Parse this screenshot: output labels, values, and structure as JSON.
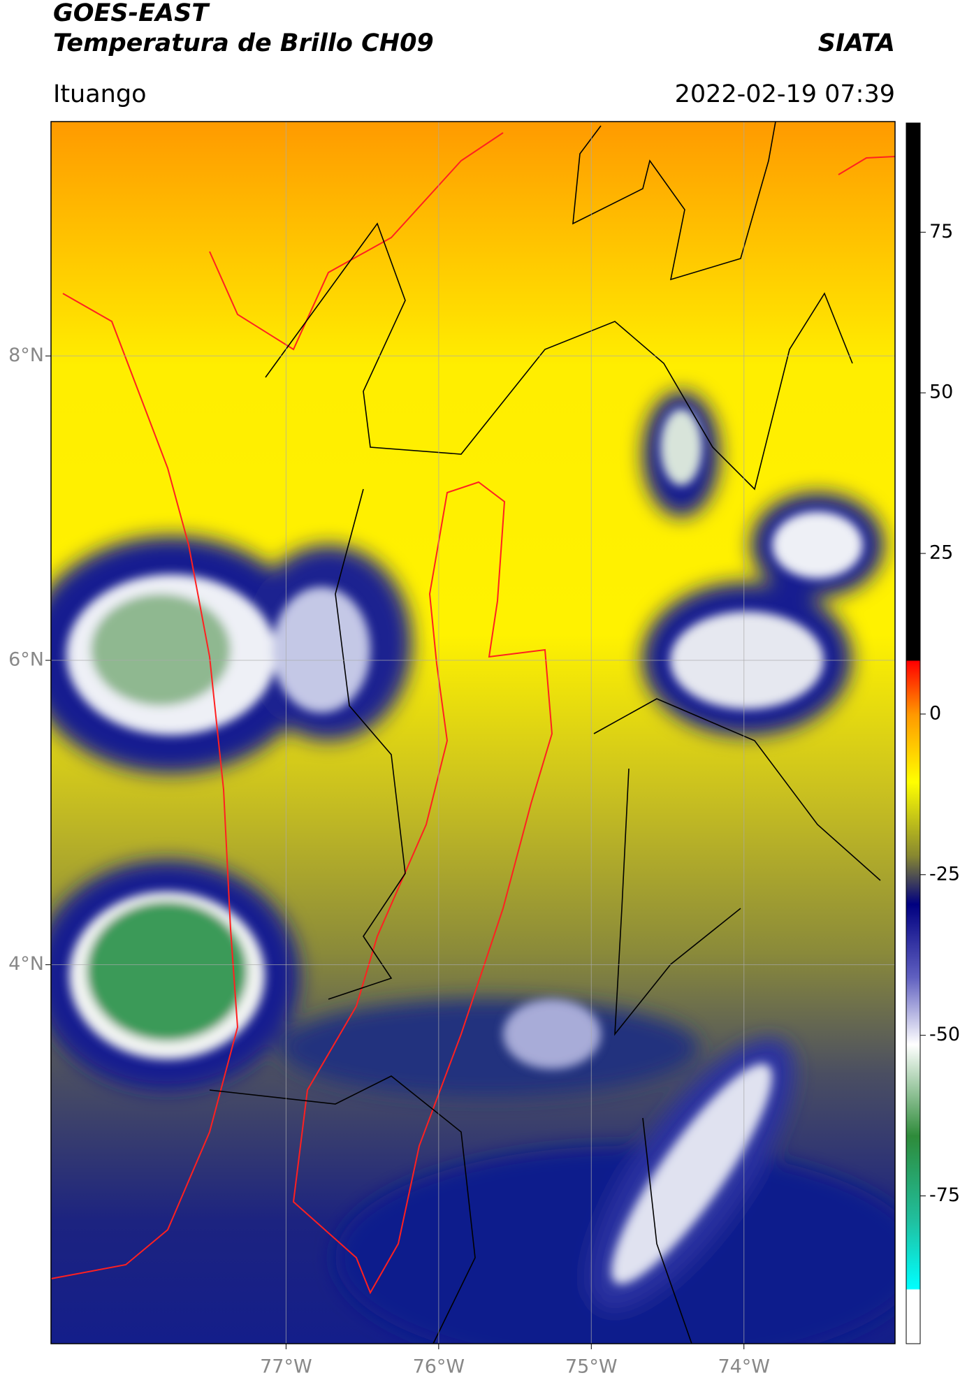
{
  "header": {
    "title": "GOES-EAST",
    "subtitle": "Temperatura de Brillo CH09",
    "source": "SIATA",
    "region": "Ituango",
    "datetime": "2022-02-19 07:39"
  },
  "map": {
    "lon_range": [
      -78.54,
      -73.01
    ],
    "lat_range": [
      1.51,
      9.54
    ],
    "lat_ticks": [
      {
        "value": 8,
        "label": "8°N"
      },
      {
        "value": 6,
        "label": "6°N"
      },
      {
        "value": 4,
        "label": "4°N"
      }
    ],
    "lon_ticks": [
      {
        "value": -77,
        "label": "77°W"
      },
      {
        "value": -76,
        "label": "76°W"
      },
      {
        "value": -75,
        "label": "75°W"
      },
      {
        "value": -74,
        "label": "74°W"
      }
    ],
    "grid": true
  },
  "colorbar": {
    "range": [
      -98,
      92
    ],
    "ticks": [
      75,
      50,
      25,
      0,
      -25,
      -50,
      -75
    ]
  }
}
